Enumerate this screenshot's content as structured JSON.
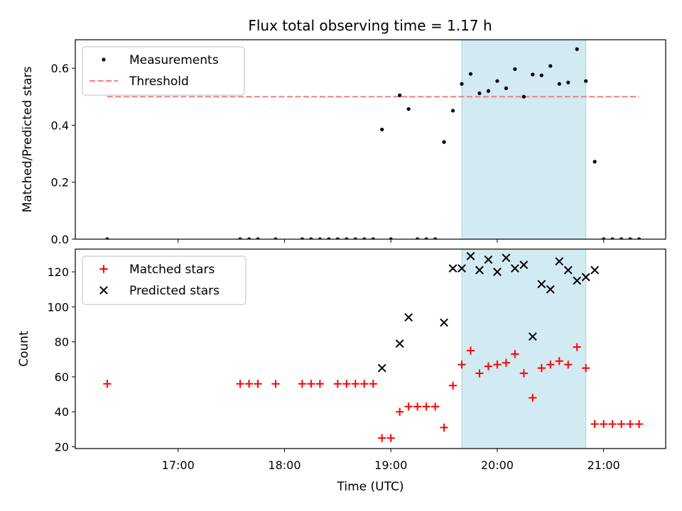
{
  "title": "Flux total observing time = 1.17 h",
  "colors": {
    "measurement": "#000000",
    "threshold": "#f08080",
    "matched": "#ff0000",
    "predicted": "#000000",
    "observing_window": "#add8e6"
  },
  "chart_data": [
    {
      "type": "scatter",
      "name": "ratio",
      "ylabel": "Matched/Predicted stars",
      "ylim": [
        0,
        0.7
      ],
      "yticks": [
        0.0,
        0.2,
        0.4,
        0.6
      ],
      "ytick_labels": [
        "0.0",
        "0.2",
        "0.4",
        "0.6"
      ],
      "xlim": [
        "16:02",
        "21:35"
      ],
      "grid": false,
      "legend_position": "upper-left",
      "observing_window": [
        "19:40",
        "20:50"
      ],
      "threshold": 0.5,
      "threshold_range": [
        "16:20",
        "21:20"
      ],
      "legend": [
        {
          "label": "Measurements",
          "marker": "dot"
        },
        {
          "label": "Threshold",
          "marker": "dashed-line"
        }
      ],
      "series": [
        {
          "name": "Measurements",
          "marker": "dot",
          "points": [
            [
              "16:20",
              0.0
            ],
            [
              "17:35",
              0.0
            ],
            [
              "17:40",
              0.0
            ],
            [
              "17:45",
              0.0
            ],
            [
              "17:55",
              0.0
            ],
            [
              "18:10",
              0.0
            ],
            [
              "18:15",
              0.0
            ],
            [
              "18:20",
              0.0
            ],
            [
              "18:25",
              0.0
            ],
            [
              "18:30",
              0.0
            ],
            [
              "18:35",
              0.0
            ],
            [
              "18:40",
              0.0
            ],
            [
              "18:45",
              0.0
            ],
            [
              "18:50",
              0.0
            ],
            [
              "18:55",
              0.385
            ],
            [
              "19:00",
              0.0
            ],
            [
              "19:05",
              0.505
            ],
            [
              "19:10",
              0.457
            ],
            [
              "19:15",
              0.0
            ],
            [
              "19:20",
              0.0
            ],
            [
              "19:25",
              0.0
            ],
            [
              "19:30",
              0.341
            ],
            [
              "19:35",
              0.451
            ],
            [
              "19:40",
              0.545
            ],
            [
              "19:45",
              0.58
            ],
            [
              "19:50",
              0.512
            ],
            [
              "19:55",
              0.52
            ],
            [
              "20:00",
              0.555
            ],
            [
              "20:05",
              0.53
            ],
            [
              "20:10",
              0.597
            ],
            [
              "20:15",
              0.5
            ],
            [
              "20:20",
              0.578
            ],
            [
              "20:25",
              0.575
            ],
            [
              "20:30",
              0.608
            ],
            [
              "20:35",
              0.545
            ],
            [
              "20:40",
              0.55
            ],
            [
              "20:45",
              0.667
            ],
            [
              "20:50",
              0.555
            ],
            [
              "20:55",
              0.272
            ],
            [
              "21:00",
              0.0
            ],
            [
              "21:05",
              0.0
            ],
            [
              "21:10",
              0.0
            ],
            [
              "21:15",
              0.0
            ],
            [
              "21:20",
              0.0
            ]
          ]
        }
      ]
    },
    {
      "type": "scatter",
      "name": "counts",
      "ylabel": "Count",
      "xlabel": "Time (UTC)",
      "ylim": [
        19,
        133
      ],
      "yticks": [
        20,
        40,
        60,
        80,
        100,
        120
      ],
      "ytick_labels": [
        "20",
        "40",
        "60",
        "80",
        "100",
        "120"
      ],
      "xlim": [
        "16:02",
        "21:35"
      ],
      "xticks": [
        "17:00",
        "18:00",
        "19:00",
        "20:00",
        "21:00"
      ],
      "xtick_labels": [
        "17:00",
        "18:00",
        "19:00",
        "20:00",
        "21:00"
      ],
      "grid": false,
      "legend_position": "upper-left",
      "observing_window": [
        "19:40",
        "20:50"
      ],
      "legend": [
        {
          "label": "Matched stars",
          "marker": "plus"
        },
        {
          "label": "Predicted stars",
          "marker": "cross"
        }
      ],
      "series": [
        {
          "name": "Matched stars",
          "marker": "plus",
          "points": [
            [
              "16:20",
              56
            ],
            [
              "17:35",
              56
            ],
            [
              "17:40",
              56
            ],
            [
              "17:45",
              56
            ],
            [
              "17:55",
              56
            ],
            [
              "18:10",
              56
            ],
            [
              "18:15",
              56
            ],
            [
              "18:20",
              56
            ],
            [
              "18:30",
              56
            ],
            [
              "18:35",
              56
            ],
            [
              "18:40",
              56
            ],
            [
              "18:45",
              56
            ],
            [
              "18:50",
              56
            ],
            [
              "18:55",
              25
            ],
            [
              "19:00",
              25
            ],
            [
              "19:05",
              40
            ],
            [
              "19:10",
              43
            ],
            [
              "19:15",
              43
            ],
            [
              "19:20",
              43
            ],
            [
              "19:25",
              43
            ],
            [
              "19:30",
              31
            ],
            [
              "19:35",
              55
            ],
            [
              "19:40",
              67
            ],
            [
              "19:45",
              75
            ],
            [
              "19:50",
              62
            ],
            [
              "19:55",
              66
            ],
            [
              "20:00",
              67
            ],
            [
              "20:05",
              68
            ],
            [
              "20:10",
              73
            ],
            [
              "20:15",
              62
            ],
            [
              "20:20",
              48
            ],
            [
              "20:25",
              65
            ],
            [
              "20:30",
              67
            ],
            [
              "20:35",
              69
            ],
            [
              "20:40",
              67
            ],
            [
              "20:45",
              77
            ],
            [
              "20:50",
              65
            ],
            [
              "20:55",
              33
            ],
            [
              "21:00",
              33
            ],
            [
              "21:05",
              33
            ],
            [
              "21:10",
              33
            ],
            [
              "21:15",
              33
            ],
            [
              "21:20",
              33
            ]
          ]
        },
        {
          "name": "Predicted stars",
          "marker": "cross",
          "points": [
            [
              "18:55",
              65
            ],
            [
              "19:05",
              79
            ],
            [
              "19:10",
              94
            ],
            [
              "19:30",
              91
            ],
            [
              "19:35",
              122
            ],
            [
              "19:40",
              122
            ],
            [
              "19:45",
              129
            ],
            [
              "19:50",
              121
            ],
            [
              "19:55",
              127
            ],
            [
              "20:00",
              120
            ],
            [
              "20:05",
              128
            ],
            [
              "20:10",
              122
            ],
            [
              "20:15",
              124
            ],
            [
              "20:20",
              83
            ],
            [
              "20:25",
              113
            ],
            [
              "20:30",
              110
            ],
            [
              "20:35",
              126
            ],
            [
              "20:40",
              121
            ],
            [
              "20:45",
              115
            ],
            [
              "20:50",
              117
            ],
            [
              "20:55",
              121
            ]
          ]
        }
      ]
    }
  ]
}
